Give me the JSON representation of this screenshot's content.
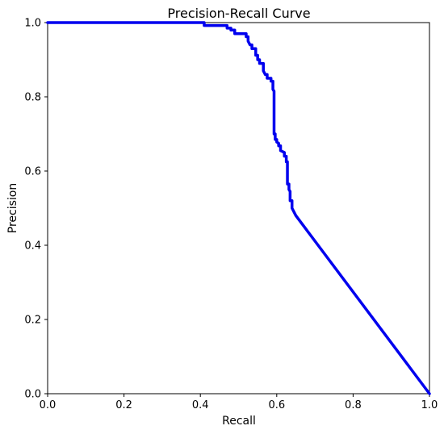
{
  "chart_data": {
    "type": "line",
    "title": "Precision-Recall Curve",
    "xlabel": "Recall",
    "ylabel": "Precision",
    "xlim": [
      0.0,
      1.0
    ],
    "ylim": [
      0.0,
      1.0
    ],
    "xticks": [
      "0.0",
      "0.2",
      "0.4",
      "0.6",
      "0.8",
      "1.0"
    ],
    "yticks": [
      "0.0",
      "0.2",
      "0.4",
      "0.6",
      "0.8",
      "1.0"
    ],
    "grid": false,
    "legend": "none",
    "series": [
      {
        "color": "#0000ee",
        "points": [
          [
            0.0,
            1.0
          ],
          [
            0.41,
            1.0
          ],
          [
            0.41,
            0.992
          ],
          [
            0.47,
            0.992
          ],
          [
            0.47,
            0.985
          ],
          [
            0.48,
            0.985
          ],
          [
            0.48,
            0.98
          ],
          [
            0.49,
            0.98
          ],
          [
            0.49,
            0.97
          ],
          [
            0.52,
            0.97
          ],
          [
            0.52,
            0.962
          ],
          [
            0.525,
            0.962
          ],
          [
            0.525,
            0.95
          ],
          [
            0.53,
            0.94
          ],
          [
            0.535,
            0.94
          ],
          [
            0.535,
            0.93
          ],
          [
            0.545,
            0.93
          ],
          [
            0.545,
            0.912
          ],
          [
            0.55,
            0.912
          ],
          [
            0.55,
            0.9
          ],
          [
            0.555,
            0.9
          ],
          [
            0.555,
            0.89
          ],
          [
            0.565,
            0.89
          ],
          [
            0.565,
            0.87
          ],
          [
            0.57,
            0.86
          ],
          [
            0.575,
            0.86
          ],
          [
            0.575,
            0.85
          ],
          [
            0.585,
            0.85
          ],
          [
            0.585,
            0.842
          ],
          [
            0.59,
            0.842
          ],
          [
            0.59,
            0.82
          ],
          [
            0.593,
            0.815
          ],
          [
            0.593,
            0.7
          ],
          [
            0.596,
            0.7
          ],
          [
            0.596,
            0.685
          ],
          [
            0.6,
            0.685
          ],
          [
            0.6,
            0.678
          ],
          [
            0.605,
            0.675
          ],
          [
            0.605,
            0.668
          ],
          [
            0.61,
            0.668
          ],
          [
            0.61,
            0.655
          ],
          [
            0.62,
            0.65
          ],
          [
            0.62,
            0.64
          ],
          [
            0.625,
            0.64
          ],
          [
            0.625,
            0.625
          ],
          [
            0.628,
            0.625
          ],
          [
            0.628,
            0.565
          ],
          [
            0.632,
            0.565
          ],
          [
            0.632,
            0.55
          ],
          [
            0.635,
            0.545
          ],
          [
            0.635,
            0.52
          ],
          [
            0.64,
            0.52
          ],
          [
            0.64,
            0.5
          ],
          [
            0.645,
            0.49
          ],
          [
            0.65,
            0.48
          ],
          [
            1.0,
            0.0
          ]
        ]
      }
    ]
  }
}
